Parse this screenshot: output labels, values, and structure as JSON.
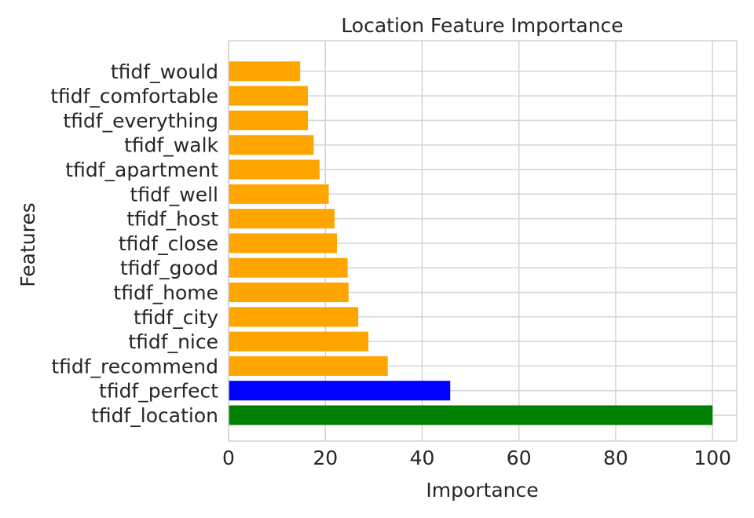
{
  "chart_data": {
    "type": "bar",
    "orientation": "horizontal",
    "title": "Location Feature Importance",
    "xlabel": "Importance",
    "ylabel": "Features",
    "xlim": [
      0,
      105
    ],
    "xticks": [
      0,
      20,
      40,
      60,
      80,
      100
    ],
    "grid": true,
    "categories": [
      "tfidf_location",
      "tfidf_perfect",
      "tfidf_recommend",
      "tfidf_nice",
      "tfidf_city",
      "tfidf_home",
      "tfidf_good",
      "tfidf_close",
      "tfidf_host",
      "tfidf_well",
      "tfidf_apartment",
      "tfidf_walk",
      "tfidf_everything",
      "tfidf_comfortable",
      "tfidf_would"
    ],
    "values": [
      100,
      45.8,
      32.9,
      28.9,
      26.8,
      24.8,
      24.6,
      22.4,
      21.9,
      20.7,
      18.8,
      17.6,
      16.4,
      16.4,
      14.8
    ],
    "colors": [
      "#008000",
      "#0000ff",
      "#ffa500",
      "#ffa500",
      "#ffa500",
      "#ffa500",
      "#ffa500",
      "#ffa500",
      "#ffa500",
      "#ffa500",
      "#ffa500",
      "#ffa500",
      "#ffa500",
      "#ffa500",
      "#ffa500"
    ]
  }
}
